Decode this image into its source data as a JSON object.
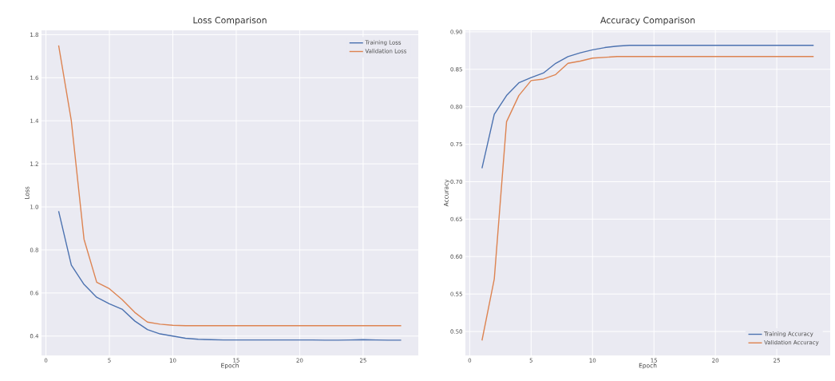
{
  "chart_data": [
    {
      "type": "line",
      "title": "Loss Comparison",
      "xlabel": "Epoch",
      "ylabel": "Loss",
      "x": [
        1,
        2,
        3,
        4,
        5,
        6,
        7,
        8,
        9,
        10,
        11,
        12,
        13,
        14,
        15,
        16,
        17,
        18,
        19,
        20,
        21,
        22,
        23,
        24,
        25,
        26,
        27,
        28
      ],
      "xlim": [
        -0.35,
        29.35
      ],
      "ylim": [
        0.31,
        1.82
      ],
      "xticks": [
        0,
        5,
        10,
        15,
        20,
        25
      ],
      "yticks": [
        {
          "value": 0.4,
          "label": "0.4"
        },
        {
          "value": 0.6,
          "label": "0.6"
        },
        {
          "value": 0.8,
          "label": "0.8"
        },
        {
          "value": 1.0,
          "label": "1.0"
        },
        {
          "value": 1.2,
          "label": "1.2"
        },
        {
          "value": 1.4,
          "label": "1.4"
        },
        {
          "value": 1.6,
          "label": "1.6"
        },
        {
          "value": 1.8,
          "label": "1.8"
        }
      ],
      "grid": true,
      "legend": "top right",
      "series": [
        {
          "name": "Training Loss",
          "color": "#4c72b0",
          "values": [
            0.98,
            0.73,
            0.64,
            0.58,
            0.55,
            0.525,
            0.47,
            0.43,
            0.41,
            0.4,
            0.39,
            0.385,
            0.383,
            0.382,
            0.382,
            0.382,
            0.382,
            0.382,
            0.382,
            0.382,
            0.382,
            0.381,
            0.381,
            0.382,
            0.383,
            0.382,
            0.381,
            0.381
          ]
        },
        {
          "name": "Validation Loss",
          "color": "#dd8452",
          "values": [
            1.75,
            1.4,
            0.85,
            0.65,
            0.62,
            0.57,
            0.51,
            0.465,
            0.455,
            0.45,
            0.448,
            0.448,
            0.448,
            0.448,
            0.448,
            0.448,
            0.448,
            0.448,
            0.448,
            0.448,
            0.448,
            0.448,
            0.448,
            0.448,
            0.448,
            0.448,
            0.448,
            0.448
          ]
        }
      ]
    },
    {
      "type": "line",
      "title": "Accuracy Comparison",
      "xlabel": "Epoch",
      "ylabel": "Accuracy",
      "x": [
        1,
        2,
        3,
        4,
        5,
        6,
        7,
        8,
        9,
        10,
        11,
        12,
        13,
        14,
        15,
        16,
        17,
        18,
        19,
        20,
        21,
        22,
        23,
        24,
        25,
        26,
        27,
        28
      ],
      "xlim": [
        -0.35,
        29.35
      ],
      "ylim": [
        0.468,
        0.902
      ],
      "xticks": [
        0,
        5,
        10,
        15,
        20,
        25
      ],
      "yticks": [
        {
          "value": 0.5,
          "label": "0.50"
        },
        {
          "value": 0.55,
          "label": "0.55"
        },
        {
          "value": 0.6,
          "label": "0.60"
        },
        {
          "value": 0.65,
          "label": "0.65"
        },
        {
          "value": 0.7,
          "label": "0.70"
        },
        {
          "value": 0.75,
          "label": "0.75"
        },
        {
          "value": 0.8,
          "label": "0.80"
        },
        {
          "value": 0.85,
          "label": "0.85"
        },
        {
          "value": 0.9,
          "label": "0.90"
        }
      ],
      "grid": true,
      "legend": "bottom right",
      "series": [
        {
          "name": "Training Accuracy",
          "color": "#4c72b0",
          "values": [
            0.718,
            0.79,
            0.815,
            0.832,
            0.839,
            0.845,
            0.858,
            0.867,
            0.872,
            0.876,
            0.879,
            0.881,
            0.882,
            0.882,
            0.882,
            0.882,
            0.882,
            0.882,
            0.882,
            0.882,
            0.882,
            0.882,
            0.882,
            0.882,
            0.882,
            0.882,
            0.882,
            0.882
          ]
        },
        {
          "name": "Validation Accuracy",
          "color": "#dd8452",
          "values": [
            0.488,
            0.57,
            0.78,
            0.815,
            0.835,
            0.837,
            0.843,
            0.858,
            0.861,
            0.865,
            0.866,
            0.867,
            0.867,
            0.867,
            0.867,
            0.867,
            0.867,
            0.867,
            0.867,
            0.867,
            0.867,
            0.867,
            0.867,
            0.867,
            0.867,
            0.867,
            0.867,
            0.867
          ]
        }
      ]
    }
  ]
}
